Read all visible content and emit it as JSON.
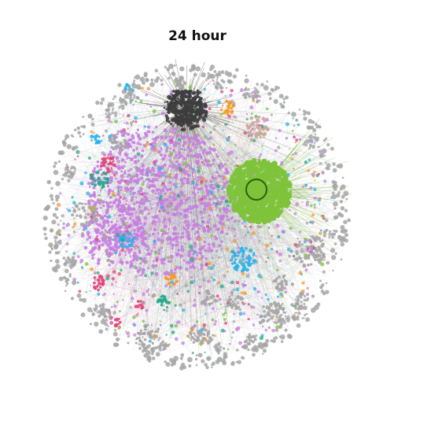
{
  "title": "24 hour",
  "network": {
    "background": "#ffffff",
    "edge_color_default": "#c8c8c8",
    "clusters": [
      {
        "id": "hub-green",
        "color": "#7ec33a"
      },
      {
        "id": "hub-dark",
        "color": "#3d3d3d"
      },
      {
        "id": "purple",
        "color": "#c77ee0"
      },
      {
        "id": "teal",
        "color": "#25a98a"
      },
      {
        "id": "pink",
        "color": "#e0457a"
      },
      {
        "id": "cyan",
        "color": "#2bb3e8"
      },
      {
        "id": "orange",
        "color": "#f39a2a"
      },
      {
        "id": "mauve",
        "color": "#c9a89e"
      },
      {
        "id": "grey",
        "color": "#a6a6a6"
      }
    ]
  }
}
